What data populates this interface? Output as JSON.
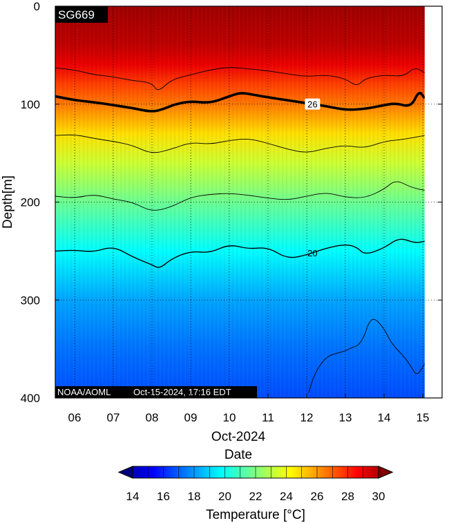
{
  "chart_data": {
    "type": "heatmap",
    "title": "",
    "platform_label": "SG669",
    "credit": "NOAA/AOML",
    "timestamp": "Oct-15-2024, 17:16 EDT",
    "xlabel": "Date",
    "x_sublabel": "Oct-2024",
    "ylabel": "Depth[m]",
    "colorbar_label": "Temperature [°C]",
    "x_ticks": [
      "06",
      "07",
      "08",
      "09",
      "10",
      "11",
      "12",
      "13",
      "14",
      "15"
    ],
    "y_ticks": [
      "0",
      "100",
      "200",
      "300",
      "400"
    ],
    "xlim": [
      5.5,
      15.5
    ],
    "ylim": [
      0,
      400
    ],
    "y_inverted": true,
    "data_xlim": [
      5.5,
      15.05
    ],
    "colorbar_ticks": [
      "14",
      "16",
      "18",
      "20",
      "22",
      "24",
      "26",
      "28",
      "30"
    ],
    "colorbar_range": [
      14,
      30
    ],
    "colormap": [
      "#00007f",
      "#0000ff",
      "#007fff",
      "#00ffff",
      "#7fff7f",
      "#ffff00",
      "#ff7f00",
      "#ff0000",
      "#7f0000"
    ],
    "grid": true,
    "temperature_profile": {
      "depth": [
        0,
        40,
        60,
        80,
        100,
        130,
        160,
        200,
        250,
        300,
        350,
        400
      ],
      "temp": [
        29.5,
        29.0,
        28.3,
        27.0,
        26.1,
        24.5,
        23.2,
        21.7,
        20.0,
        18.6,
        17.8,
        17.2
      ]
    },
    "contours": [
      {
        "level": 28,
        "x": [
          5.5,
          6.0,
          6.5,
          7.0,
          7.5,
          8.0,
          8.15,
          8.5,
          9.0,
          9.5,
          10.0,
          10.5,
          11.0,
          11.5,
          12.0,
          12.5,
          13.0,
          13.3,
          13.5,
          14.0,
          14.5,
          14.8,
          15.05
        ],
        "depth": [
          63,
          65,
          70,
          72,
          76,
          78,
          88,
          75,
          70,
          65,
          62,
          64,
          66,
          69,
          72,
          70,
          74,
          82,
          74,
          70,
          72,
          62,
          68
        ]
      },
      {
        "level": 26,
        "label": "26",
        "x": [
          5.5,
          6.0,
          6.5,
          7.0,
          7.5,
          8.0,
          8.3,
          8.6,
          9.0,
          9.5,
          10.0,
          10.3,
          10.7,
          11.0,
          11.5,
          12.0,
          12.5,
          13.0,
          13.5,
          14.0,
          14.3,
          14.7,
          14.9,
          15.05
        ],
        "depth": [
          92,
          96,
          98,
          101,
          104,
          108,
          105,
          100,
          97,
          99,
          92,
          88,
          91,
          93,
          96,
          99,
          102,
          106,
          105,
          101,
          99,
          103,
          86,
          94
        ]
      },
      {
        "level": 24,
        "x": [
          5.5,
          6.0,
          6.5,
          7.0,
          7.5,
          8.0,
          8.5,
          9.0,
          9.5,
          10.0,
          10.5,
          11.0,
          11.5,
          12.0,
          12.5,
          13.0,
          13.5,
          14.0,
          14.5,
          15.05
        ],
        "depth": [
          132,
          131,
          135,
          138,
          142,
          151,
          146,
          139,
          141,
          137,
          135,
          140,
          146,
          150,
          145,
          142,
          145,
          138,
          136,
          132
        ]
      },
      {
        "level": 22,
        "x": [
          5.5,
          6.0,
          6.5,
          7.0,
          7.5,
          8.0,
          8.5,
          9.0,
          9.5,
          10.0,
          10.5,
          11.0,
          11.5,
          12.0,
          12.5,
          13.0,
          13.5,
          14.0,
          14.3,
          14.7,
          15.05
        ],
        "depth": [
          194,
          196,
          192,
          197,
          200,
          210,
          205,
          195,
          192,
          191,
          193,
          196,
          198,
          194,
          190,
          195,
          196,
          187,
          177,
          185,
          188
        ]
      },
      {
        "level": 20,
        "label": "20",
        "x": [
          5.5,
          6.0,
          6.5,
          7.0,
          7.5,
          8.0,
          8.2,
          8.5,
          9.0,
          9.5,
          10.0,
          10.5,
          11.0,
          11.5,
          12.0,
          12.5,
          13.0,
          13.3,
          13.5,
          14.0,
          14.4,
          14.8,
          15.05
        ],
        "depth": [
          250,
          249,
          251,
          245,
          256,
          264,
          268,
          258,
          250,
          252,
          243,
          248,
          246,
          258,
          254,
          247,
          243,
          246,
          254,
          247,
          236,
          242,
          240
        ]
      },
      {
        "level": 18,
        "x": [
          12.05,
          12.2,
          12.5,
          12.8,
          13.0,
          13.2,
          13.35,
          13.5,
          13.6,
          13.75,
          14.0,
          14.2,
          14.5,
          14.7,
          14.85,
          15.05
        ],
        "depth": [
          395,
          375,
          358,
          354,
          352,
          348,
          346,
          336,
          323,
          318,
          329,
          345,
          357,
          368,
          378,
          365
        ]
      }
    ]
  }
}
